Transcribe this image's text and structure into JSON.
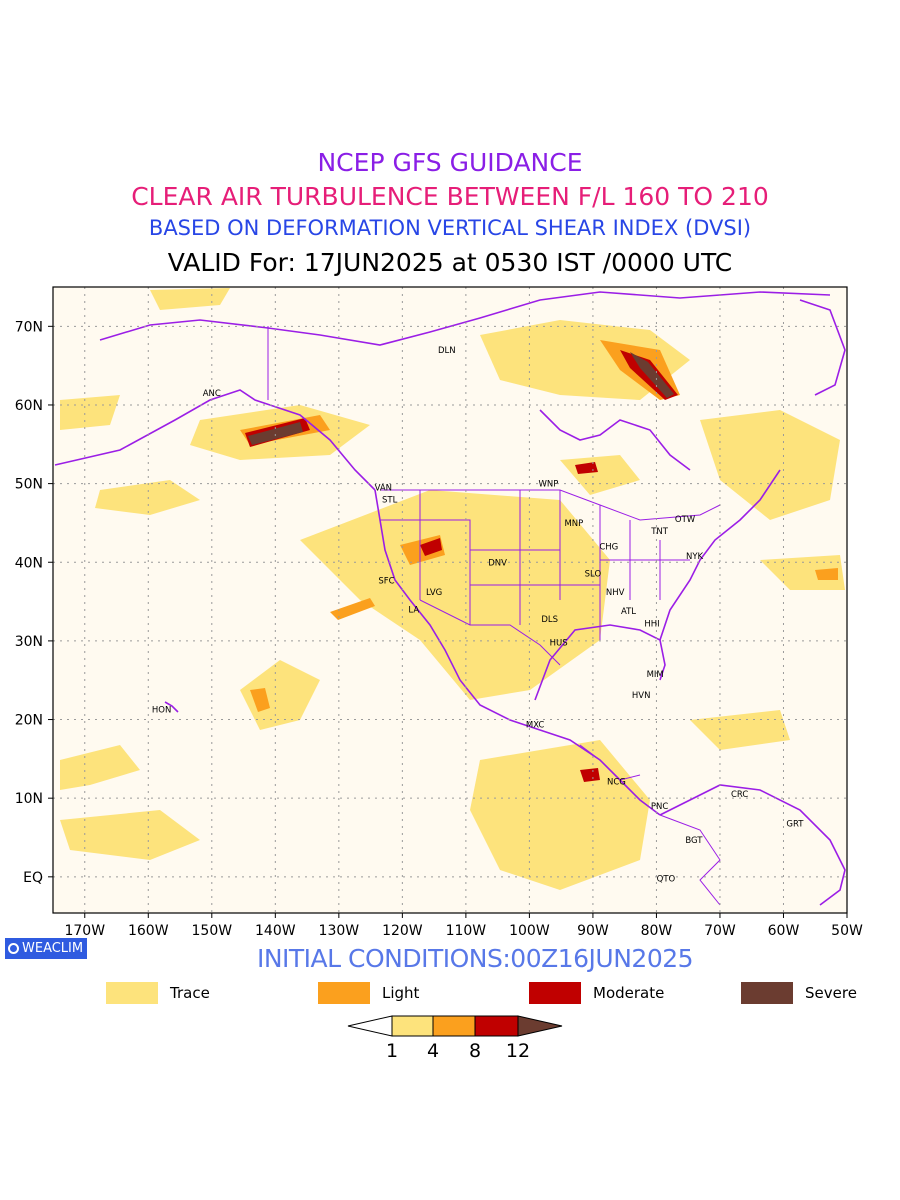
{
  "titles": {
    "line1": "NCEP GFS GUIDANCE",
    "line2": "CLEAR AIR TURBULENCE BETWEEN F/L 160 TO 210",
    "line3": "BASED ON DEFORMATION VERTICAL SHEAR INDEX (DVSI)",
    "line4": "VALID For: 17JUN2025 at 0530 IST /0000 UTC"
  },
  "colors": {
    "line1": "#8a1ee6",
    "line2": "#e61e78",
    "line3": "#2846e6",
    "boundary": "#9b1ee6",
    "trace": "#fde37c",
    "light": "#fba01e",
    "moderate": "#c00000",
    "severe": "#6b3c30"
  },
  "map": {
    "lat_labels": [
      "70N",
      "60N",
      "50N",
      "40N",
      "30N",
      "20N",
      "10N",
      "EQ"
    ],
    "lon_labels": [
      "170W",
      "160W",
      "150W",
      "140W",
      "130W",
      "120W",
      "110W",
      "100W",
      "90W",
      "80W",
      "70W",
      "60W",
      "50W"
    ],
    "stations": [
      {
        "name": "DLN",
        "lon": -113,
        "lat": 67
      },
      {
        "name": "ANC",
        "lon": -150,
        "lat": 61.5
      },
      {
        "name": "VAN",
        "lon": -123,
        "lat": 49.5
      },
      {
        "name": "STL",
        "lon": -122,
        "lat": 48
      },
      {
        "name": "WNP",
        "lon": -97,
        "lat": 50
      },
      {
        "name": "MNP",
        "lon": -93,
        "lat": 45
      },
      {
        "name": "TNT",
        "lon": -79.5,
        "lat": 44
      },
      {
        "name": "OTW",
        "lon": -75.5,
        "lat": 45.5
      },
      {
        "name": "CHG",
        "lon": -87.5,
        "lat": 42
      },
      {
        "name": "NYK",
        "lon": -74,
        "lat": 40.8
      },
      {
        "name": "DNV",
        "lon": -105,
        "lat": 40
      },
      {
        "name": "SFC",
        "lon": -122.5,
        "lat": 37.7
      },
      {
        "name": "LVG",
        "lon": -115,
        "lat": 36.2
      },
      {
        "name": "SLO",
        "lon": -90,
        "lat": 38.6
      },
      {
        "name": "NHV",
        "lon": -86.5,
        "lat": 36.2
      },
      {
        "name": "LA",
        "lon": -118.2,
        "lat": 34
      },
      {
        "name": "ATL",
        "lon": -84.4,
        "lat": 33.8
      },
      {
        "name": "DLS",
        "lon": -96.8,
        "lat": 32.8
      },
      {
        "name": "HHI",
        "lon": -80.7,
        "lat": 32.2
      },
      {
        "name": "HUS",
        "lon": -95.4,
        "lat": 29.8
      },
      {
        "name": "MIM",
        "lon": -80.2,
        "lat": 25.8
      },
      {
        "name": "HVN",
        "lon": -82.4,
        "lat": 23.1
      },
      {
        "name": "HON",
        "lon": -157.9,
        "lat": 21.3
      },
      {
        "name": "MXC",
        "lon": -99.1,
        "lat": 19.4
      },
      {
        "name": "NCG",
        "lon": -86.3,
        "lat": 12.1
      },
      {
        "name": "CRC",
        "lon": -66.9,
        "lat": 10.5
      },
      {
        "name": "PNC",
        "lon": -79.5,
        "lat": 9
      },
      {
        "name": "GRT",
        "lon": -58.2,
        "lat": 6.8
      },
      {
        "name": "BGT",
        "lon": -74.1,
        "lat": 4.7
      },
      {
        "name": "QTO",
        "lon": -78.5,
        "lat": -0.2
      }
    ]
  },
  "footer": {
    "brand": "WEACLIM",
    "brand_icon": "circle-icon",
    "initial_conditions": "INITIAL CONDITIONS:00Z16JUN2025"
  },
  "legend": {
    "items": [
      {
        "label": "Trace",
        "color": "#fde37c"
      },
      {
        "label": "Light",
        "color": "#fba01e"
      },
      {
        "label": "Moderate",
        "color": "#c00000"
      },
      {
        "label": "Severe",
        "color": "#6b3c30"
      }
    ],
    "colorbar_ticks": [
      "1",
      "4",
      "8",
      "12"
    ]
  }
}
